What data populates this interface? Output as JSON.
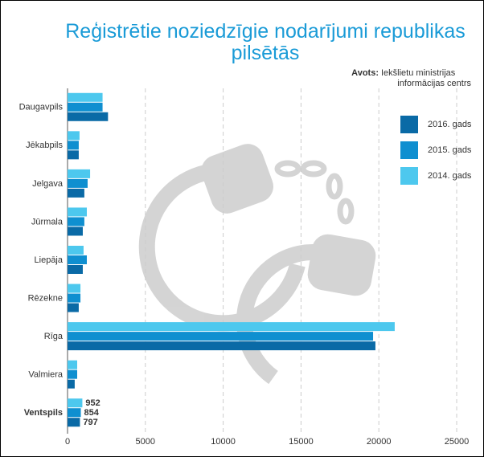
{
  "chart_data": {
    "type": "barh",
    "title": "Reģistrētie noziedzīgie nodarījumi republikas pilsētās",
    "source_label": "Avots:",
    "source_lines": [
      "Iekšlietu ministrijas",
      "informācijas centrs"
    ],
    "categories": [
      "Daugavpils",
      "Jēkabpils",
      "Jelgava",
      "Jūrmala",
      "Liepāja",
      "Rēzekne",
      "Rīga",
      "Valmiera",
      "Ventspils"
    ],
    "series": [
      {
        "name": "2016. gads",
        "color": "#0a6aa6",
        "values": [
          2600,
          720,
          1080,
          980,
          980,
          720,
          19780,
          460,
          797
        ]
      },
      {
        "name": "2015. gads",
        "color": "#0f8fd0",
        "values": [
          2250,
          720,
          1290,
          1080,
          1240,
          830,
          19630,
          620,
          854
        ]
      },
      {
        "name": "2014. gads",
        "color": "#4dc8ee",
        "values": [
          2250,
          770,
          1450,
          1240,
          1030,
          830,
          21020,
          620,
          952
        ]
      }
    ],
    "xlim": [
      0,
      25000
    ],
    "xticks": [
      0,
      5000,
      10000,
      15000,
      20000,
      25000
    ],
    "grid": true,
    "legend": "upper right"
  }
}
